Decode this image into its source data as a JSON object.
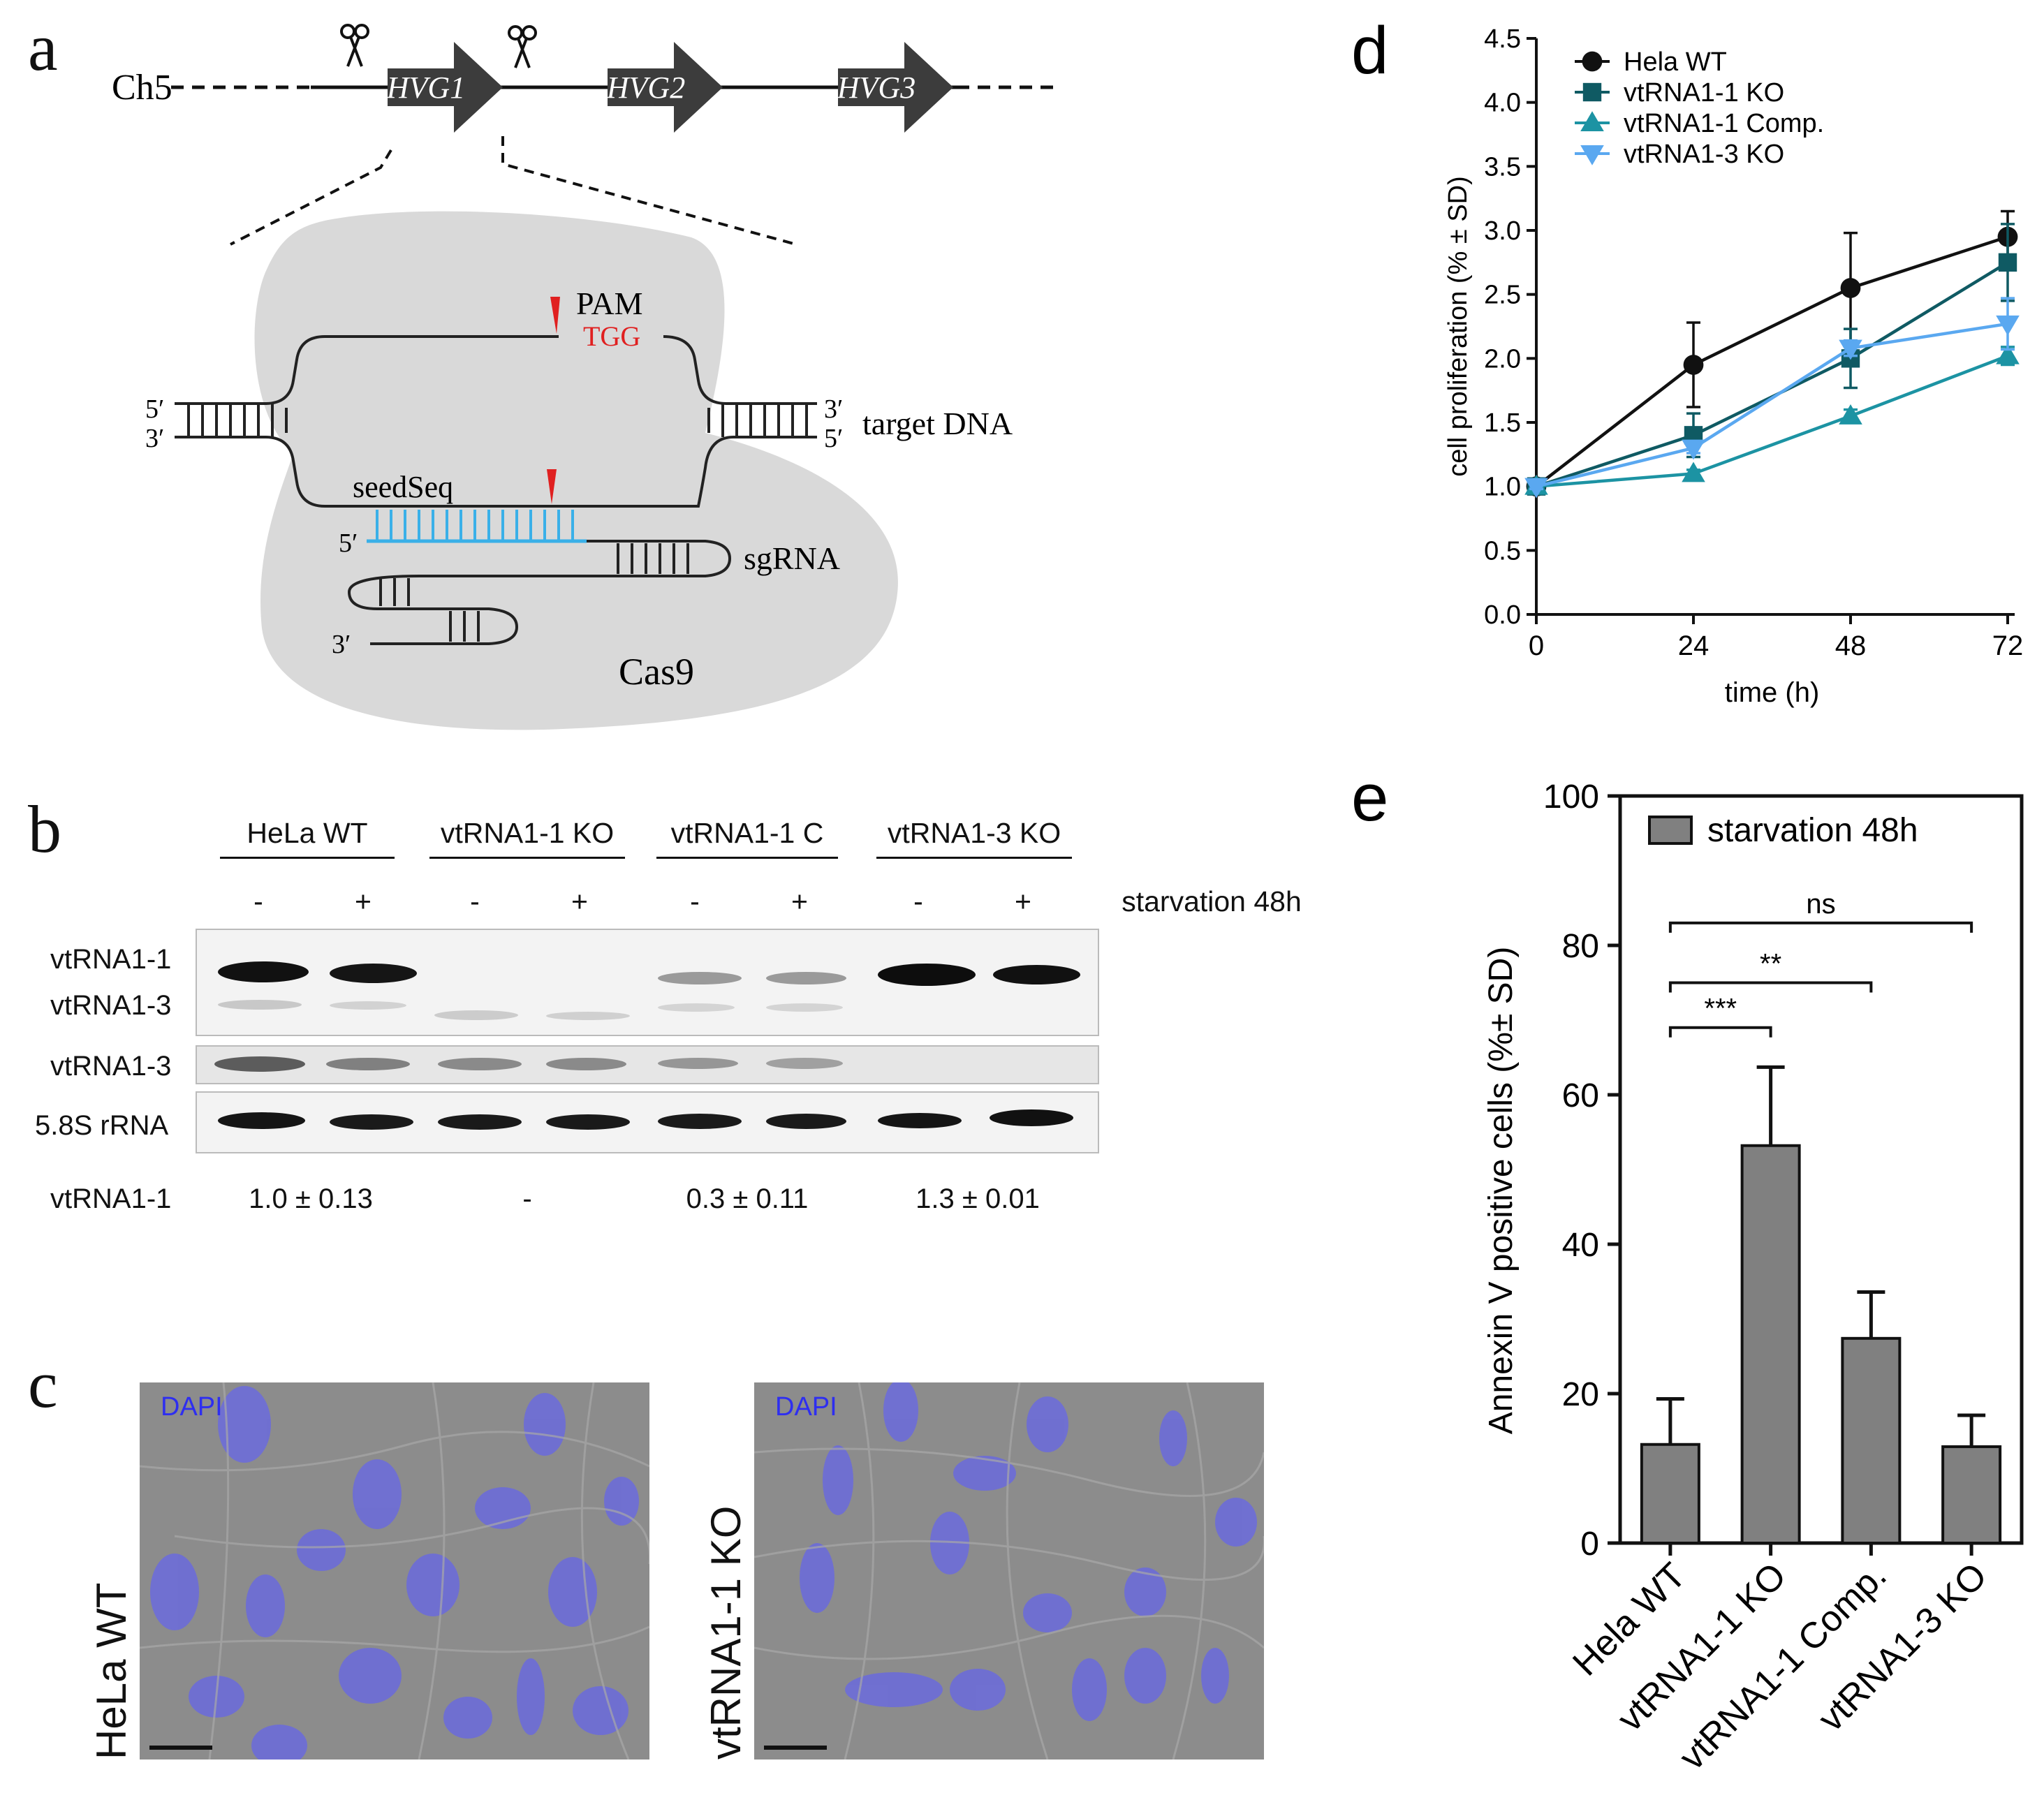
{
  "panel_a": {
    "letter": "a",
    "chromosome": "Ch5",
    "genes": [
      "HVG1",
      "HVG2",
      "HVG3"
    ],
    "pam_label": "PAM",
    "pam_seq": "TGG",
    "five_prime": "5′",
    "three_prime": "3′",
    "target_label": "target DNA",
    "seed_label": "seedSeq",
    "sgrna_label": "sgRNA",
    "cas9_label": "Cas9",
    "colors": {
      "pam": "#e02020",
      "seed": "#3ab0e8",
      "gene": "#3c3c3c",
      "cas9": "#d9d9d9"
    }
  },
  "panel_b": {
    "letter": "b",
    "groups": [
      "HeLa WT",
      "vtRNA1-1 KO",
      "vtRNA1-1 C",
      "vtRNA1-3 KO"
    ],
    "lanes": [
      "-",
      "+",
      "-",
      "+",
      "-",
      "+",
      "-",
      "+"
    ],
    "condition": "starvation 48h",
    "row_labels": [
      "vtRNA1-1",
      "vtRNA1-3",
      "vtRNA1-3",
      "5.8S rRNA"
    ],
    "quant_label": "vtRNA1-1",
    "quant_values": [
      "1.0 ± 0.13",
      "-",
      "0.3 ± 0.11",
      "1.3 ± 0.01"
    ]
  },
  "panel_c": {
    "letter": "c",
    "stain": "DAPI",
    "images": [
      "HeLa WT",
      "vtRNA1-1 KO"
    ]
  },
  "chart_data": [
    {
      "panel": "d",
      "type": "line",
      "xlabel": "time (h)",
      "ylabel": "cell proliferation (% ± SD)",
      "x": [
        0,
        24,
        48,
        72
      ],
      "xlim": [
        0,
        72
      ],
      "ylim": [
        0,
        4.5
      ],
      "yticks": [
        "0.0",
        "0.5",
        "1.0",
        "1.5",
        "2.0",
        "2.5",
        "3.0",
        "3.5",
        "4.0",
        "4.5"
      ],
      "xticks": [
        "0",
        "24",
        "48",
        "72"
      ],
      "legend_position": "top-left",
      "series": [
        {
          "name": "Hela WT",
          "values": [
            1.0,
            1.95,
            2.55,
            2.95
          ],
          "errors": [
            0.02,
            0.33,
            0.43,
            0.2
          ],
          "color": "#111111",
          "marker": "circle"
        },
        {
          "name": "vtRNA1-1 KO",
          "values": [
            1.0,
            1.4,
            2.0,
            2.75
          ],
          "errors": [
            0.02,
            0.17,
            0.23,
            0.3
          ],
          "color": "#0f5a63",
          "marker": "square"
        },
        {
          "name": "vtRNA1-1 Comp.",
          "values": [
            1.0,
            1.1,
            1.55,
            2.02
          ],
          "errors": [
            0.02,
            0.03,
            0.05,
            0.07
          ],
          "color": "#1c93a3",
          "marker": "triangle-up"
        },
        {
          "name": "vtRNA1-3 KO",
          "values": [
            1.0,
            1.3,
            2.08,
            2.27
          ],
          "errors": [
            0.02,
            0.04,
            0.06,
            0.2
          ],
          "color": "#5aa8f0",
          "marker": "triangle-down"
        }
      ]
    },
    {
      "panel": "e",
      "type": "bar",
      "ylabel": "Annexin V positive cells (%± SD)",
      "categories": [
        "Hela WT",
        "vtRNA1-1 KO",
        "vtRNA1-1 Comp.",
        "vtRNA1-3 KO"
      ],
      "ylim": [
        0,
        100
      ],
      "yticks": [
        "0",
        "20",
        "40",
        "60",
        "80",
        "100"
      ],
      "legend": "starvation 48h",
      "legend_position": "top",
      "series": [
        {
          "name": "starvation 48h",
          "values": [
            13.2,
            53.2,
            27.4,
            12.9
          ],
          "errors": [
            6.1,
            10.5,
            6.2,
            4.2
          ],
          "color": "#808080"
        }
      ],
      "significance": [
        {
          "from": 0,
          "to": 1,
          "label": "***",
          "y": 69
        },
        {
          "from": 0,
          "to": 2,
          "label": "**",
          "y": 75
        },
        {
          "from": 0,
          "to": 3,
          "label": "ns",
          "y": 83
        }
      ]
    }
  ]
}
